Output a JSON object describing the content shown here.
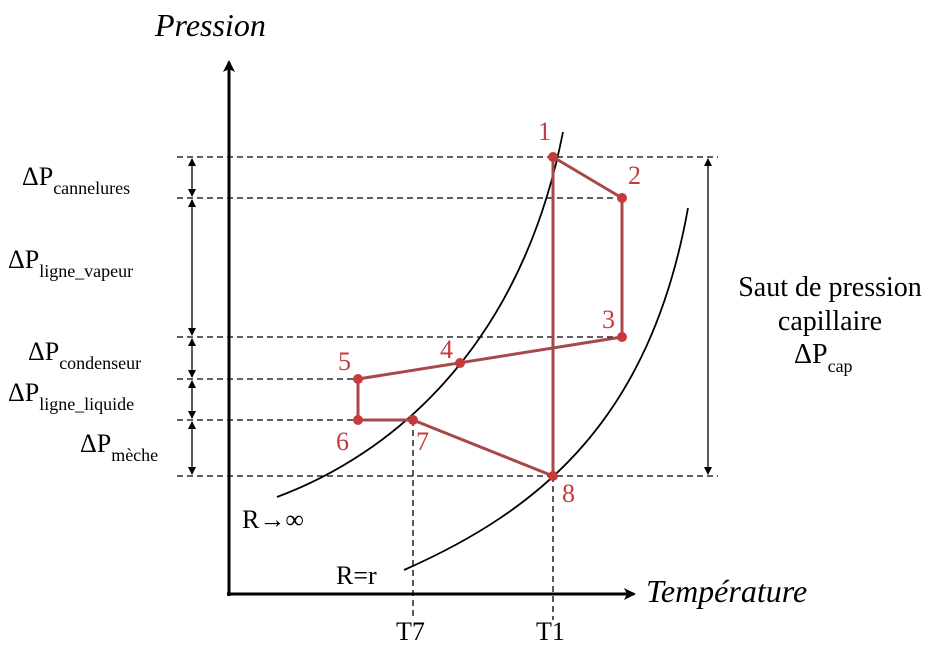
{
  "axes": {
    "y_title": "Pression",
    "x_title": "Température"
  },
  "pressure_drops": [
    {
      "main": "ΔP",
      "sub": "cannelures"
    },
    {
      "main": "ΔP",
      "sub": "ligne_vapeur"
    },
    {
      "main": "ΔP",
      "sub": "condenseur"
    },
    {
      "main": "ΔP",
      "sub": "ligne_liquide"
    },
    {
      "main": "ΔP",
      "sub": "mèche"
    }
  ],
  "capillary_jump": {
    "line1": "Saut de pression",
    "line2": "capillaire",
    "symbol_main": "ΔP",
    "symbol_sub": "cap"
  },
  "curves": {
    "left_label": "R→∞",
    "right_label": "R=r"
  },
  "temperature_ticks": [
    "T7",
    "T1"
  ],
  "points": [
    "1",
    "2",
    "3",
    "4",
    "5",
    "6",
    "7",
    "8"
  ],
  "colors": {
    "cycle": "#a84848",
    "points": "#c83a3a"
  }
}
